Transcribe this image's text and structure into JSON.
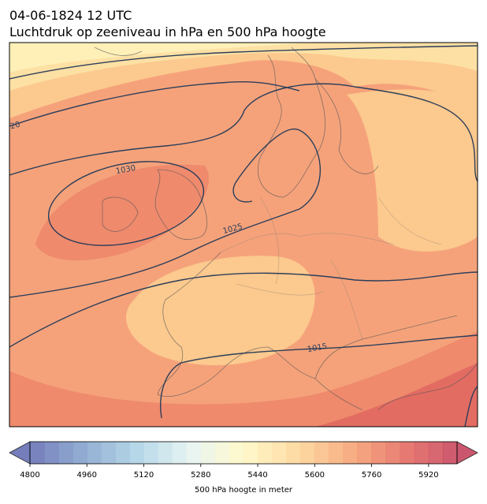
{
  "title": "04-06-1824 12 UTC",
  "subtitle": "Luchtdruk op zeeniveau in hPa en 500 hPa hoogte",
  "contour_labels": [
    "1030",
    "1025",
    "1015",
    "20"
  ],
  "colorbar": {
    "label": "500 hPa hoogte in meter",
    "lim": [
      4800,
      6000
    ],
    "boundary_step": 40,
    "ticks": [
      4800,
      4960,
      5120,
      5280,
      5440,
      5600,
      5760,
      5920
    ],
    "colors": [
      "#5e68b0",
      "#7f9fcb",
      "#a9d0e4",
      "#e4f3f2",
      "#fff8c2",
      "#fdd493",
      "#f6a06e",
      "#e4665a",
      "#c23a55"
    ]
  }
}
